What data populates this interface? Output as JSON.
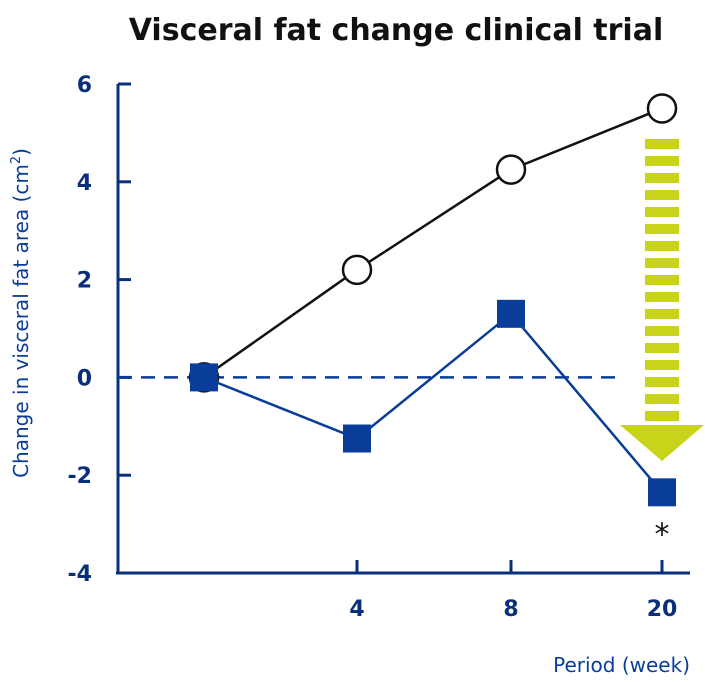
{
  "chart_data": {
    "type": "line",
    "title": "Visceral fat change clinical trial",
    "xlabel": "Period (week)",
    "ylabel": "Change in visceral fat area (cm",
    "ylabel_sup": "2",
    "ylabel_end": ")",
    "ylim": [
      -4,
      6
    ],
    "yticks": [
      "6",
      "4",
      "2",
      "0",
      "-2",
      "-4"
    ],
    "categories": [
      "",
      "4",
      "8",
      "20"
    ],
    "series": [
      {
        "marker": "open-circle",
        "values": [
          0,
          2.2,
          4.25,
          5.5
        ]
      },
      {
        "marker": "filled-square",
        "values": [
          0,
          -1.25,
          1.3,
          -2.35
        ]
      }
    ],
    "annotations": {
      "significance": "*"
    },
    "zero_line": "dashed",
    "colors": {
      "axis": "#0a2f7a",
      "square_series": "#0a3d99",
      "circle_series": "#111111",
      "arrow": "#c8d41a"
    }
  }
}
